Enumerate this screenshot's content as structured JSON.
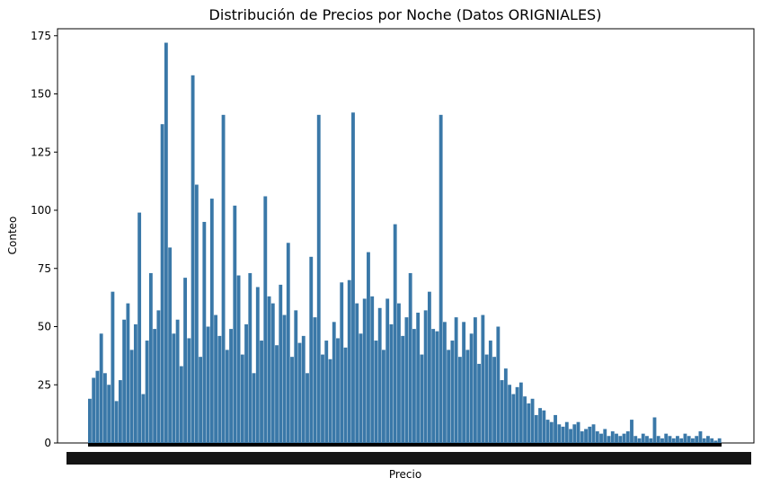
{
  "chart_data": {
    "type": "bar",
    "title": "Distribución de Precios por Noche (Datos ORIGNIALES)",
    "xlabel": "Precio",
    "ylabel": "Conteo",
    "ylim": [
      0,
      178
    ],
    "yticks": [
      0,
      25,
      50,
      75,
      100,
      125,
      150,
      175
    ],
    "bar_color": "#3a78a8",
    "grid": false,
    "x_tick_labels_note": "",
    "series": [
      {
        "values": [
          19,
          28,
          31,
          47,
          30,
          25,
          65,
          18,
          27,
          53,
          60,
          40,
          51,
          99,
          21,
          44,
          73,
          49,
          57,
          137,
          172,
          84,
          47,
          53,
          33,
          71,
          45,
          158,
          111,
          37,
          95,
          50,
          105,
          55,
          46,
          141,
          40,
          49,
          102,
          72,
          38,
          51,
          73,
          30,
          67,
          44,
          106,
          63,
          60,
          42,
          68,
          55,
          86,
          37,
          57,
          43,
          46,
          30,
          80,
          54,
          141,
          38,
          44,
          36,
          52,
          45,
          69,
          41,
          70,
          142,
          60,
          47,
          62,
          82,
          63,
          44,
          58,
          40,
          62,
          51,
          94,
          60,
          46,
          54,
          73,
          49,
          56,
          38,
          57,
          65,
          49,
          48,
          141,
          52,
          40,
          44,
          54,
          37,
          52,
          40,
          47,
          54,
          34,
          55,
          38,
          44,
          37,
          50,
          27,
          32,
          25,
          21,
          24,
          26,
          20,
          17,
          19,
          12,
          15,
          14,
          10,
          9,
          12,
          8,
          7,
          9,
          6,
          8,
          9,
          5,
          6,
          7,
          8,
          5,
          4,
          6,
          3,
          5,
          4,
          3,
          4,
          5,
          10,
          3,
          2,
          4,
          3,
          2,
          11,
          3,
          2,
          4,
          3,
          2,
          3,
          2,
          4,
          3,
          2,
          3,
          5,
          2,
          3,
          2,
          1,
          2
        ]
      }
    ]
  }
}
